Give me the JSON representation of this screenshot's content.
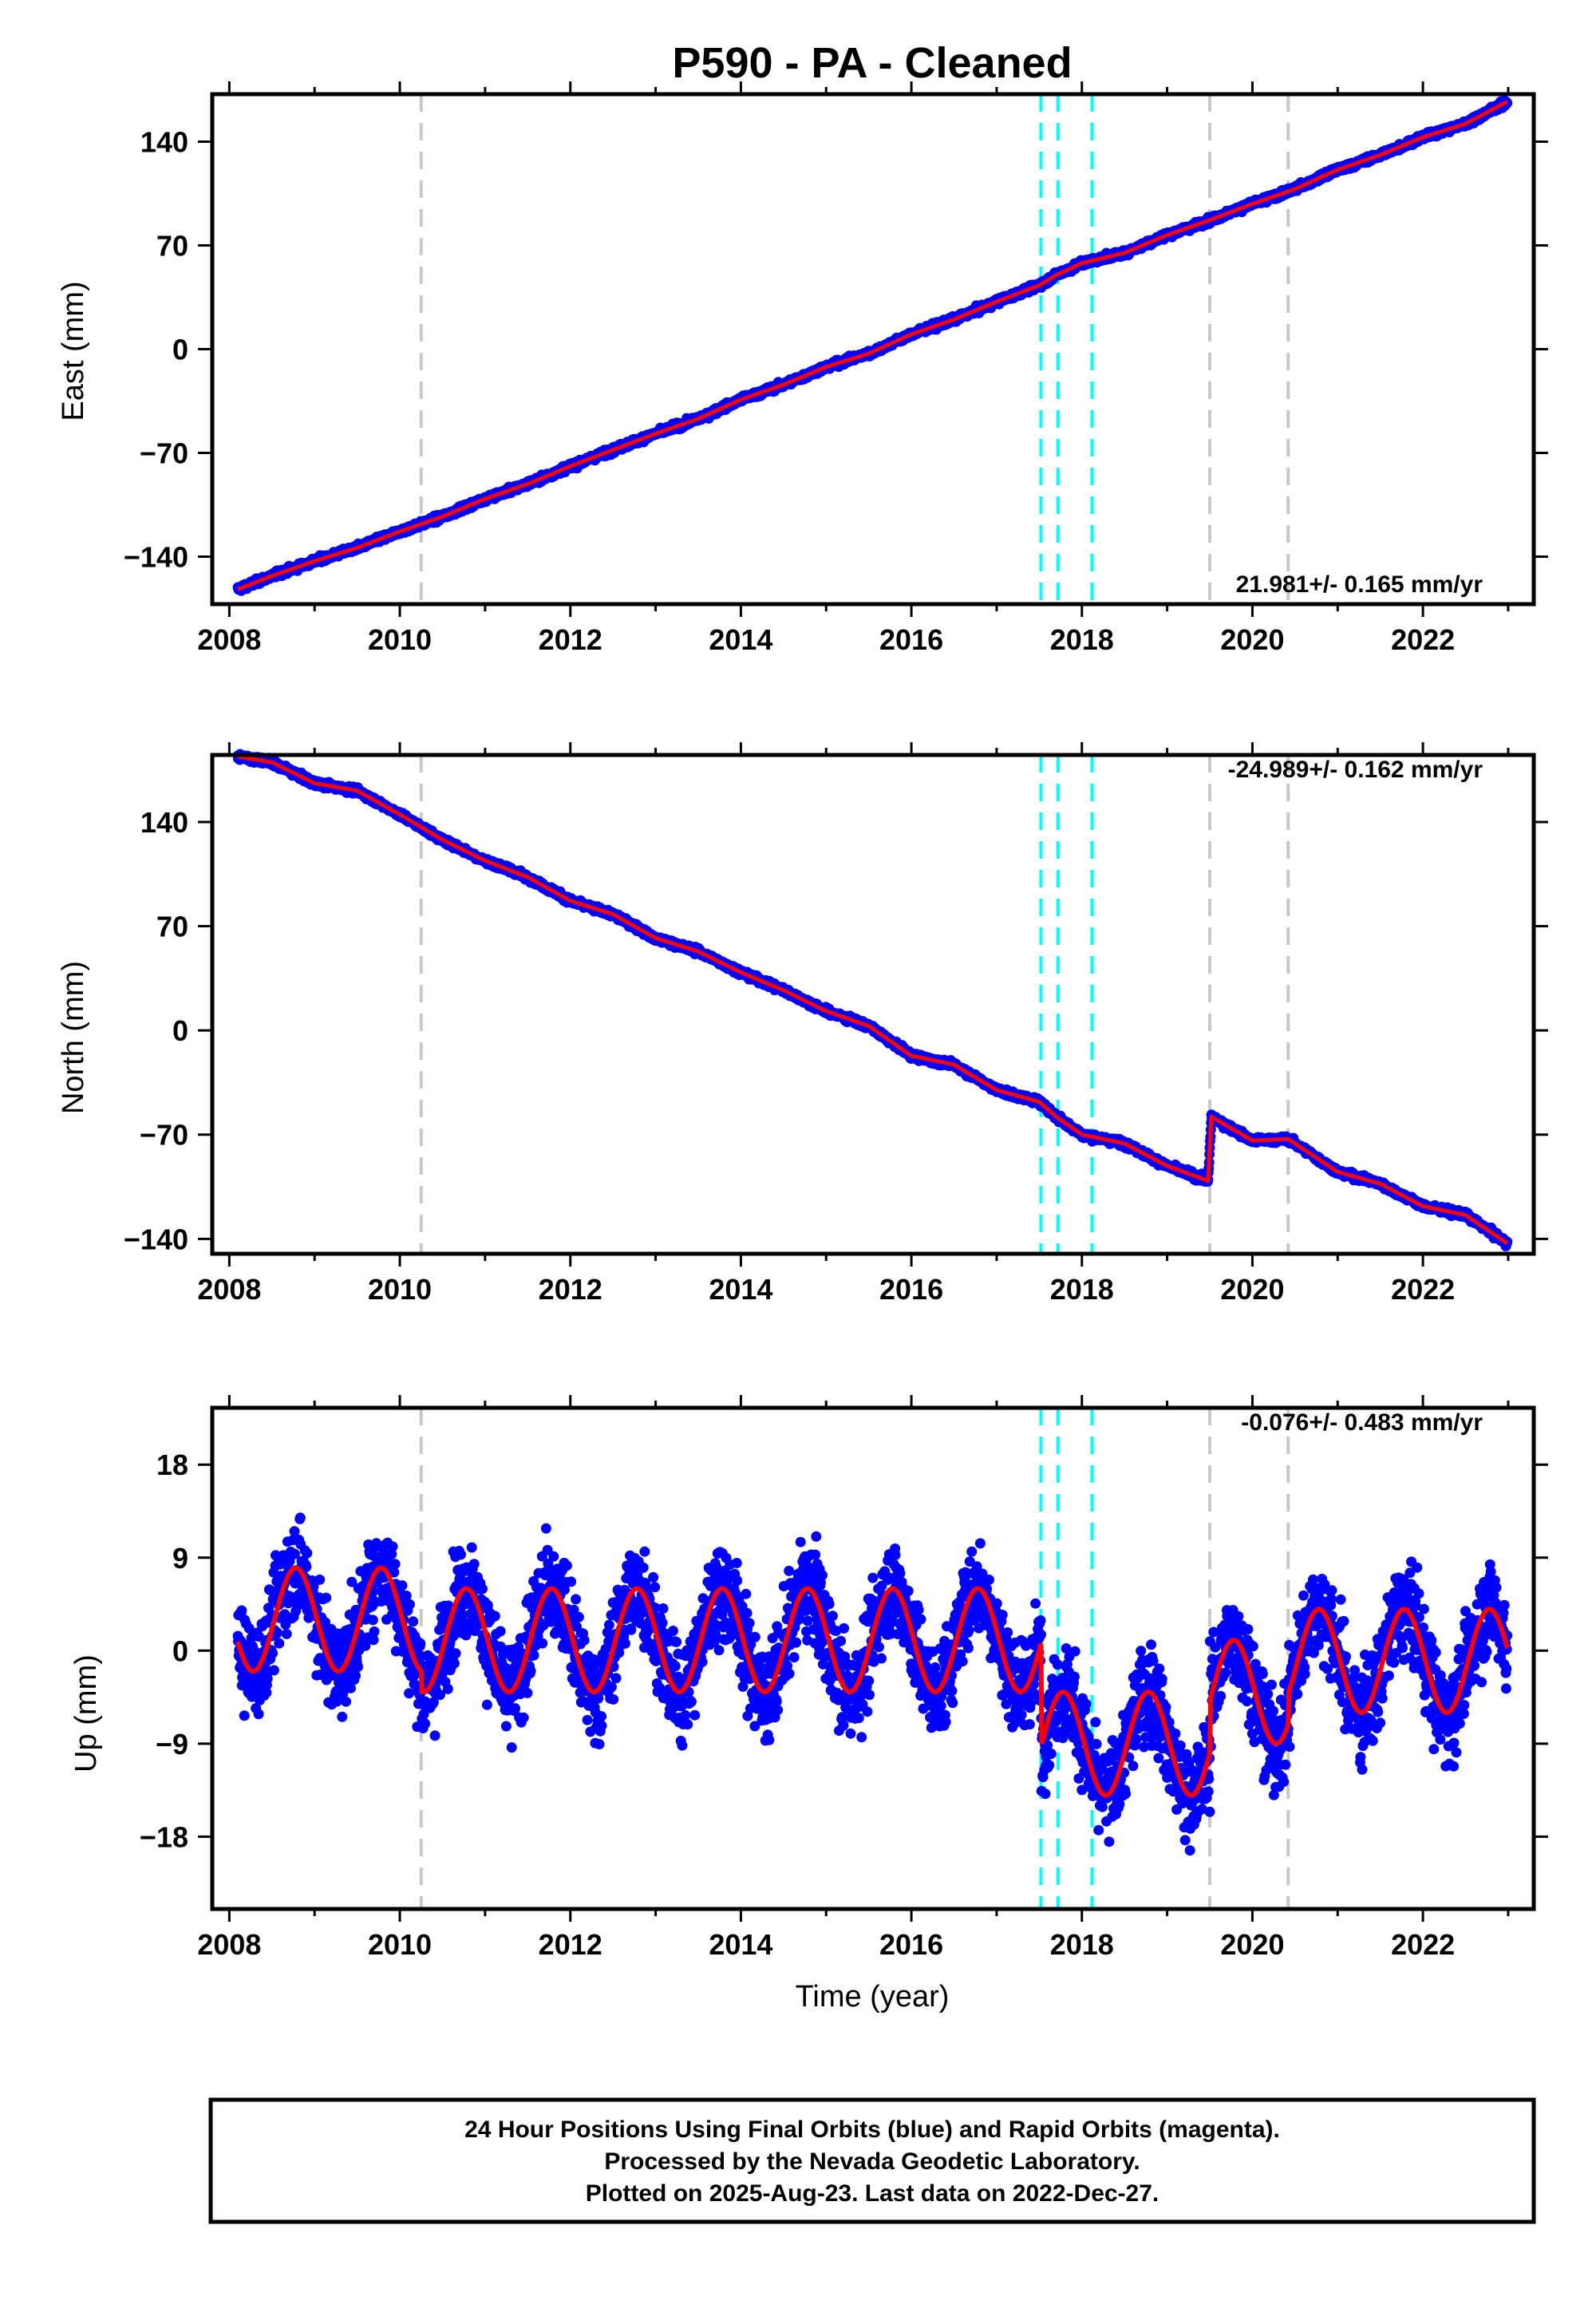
{
  "title": "P590  - PA - Cleaned",
  "colors": {
    "final_orbits": "#0000ff",
    "model": "#ff0000",
    "equipment_change": "#c8c8c8",
    "earthquake": "#00ffff"
  },
  "chart_data": [
    {
      "type": "scatter",
      "component": "East",
      "ylabel": "East (mm)",
      "xlabel": "",
      "xlim": [
        2007.8,
        2023.3
      ],
      "ylim": [
        -172,
        172
      ],
      "xticks": [
        "2008",
        "2010",
        "2012",
        "2014",
        "2016",
        "2018",
        "2020",
        "2022"
      ],
      "yticks": [
        "−140",
        "−70",
        "0",
        "70",
        "140"
      ],
      "ytick_values": [
        -140,
        -70,
        0,
        70,
        140
      ],
      "rate_label": "21.981+/- 0.165 mm/yr",
      "rate_position": "bottom-right",
      "trend": {
        "start": [
          2008.1,
          -162
        ],
        "end": [
          2022.99,
          167
        ],
        "rate_mm_per_yr": 21.981
      },
      "series": [
        {
          "x": [
            2008.1,
            2008.5,
            2009.0,
            2009.5,
            2010.0,
            2010.5,
            2011.0,
            2011.5,
            2012.0,
            2012.5,
            2013.0,
            2013.5,
            2014.0,
            2014.5,
            2015.0,
            2015.5,
            2016.0,
            2016.5,
            2017.0,
            2017.5,
            2017.7,
            2018.0,
            2018.5,
            2019.0,
            2019.5,
            2020.0,
            2020.5,
            2021.0,
            2021.5,
            2022.0,
            2022.5,
            2022.99
          ],
          "y": [
            -162,
            -153,
            -143,
            -134,
            -123,
            -113,
            -101,
            -91,
            -79,
            -68,
            -57,
            -47,
            -34,
            -24,
            -12,
            -3,
            10,
            20,
            32,
            43,
            50,
            58,
            65,
            77,
            87,
            98,
            108,
            121,
            131,
            143,
            152,
            167
          ]
        }
      ],
      "markers": {
        "equipment": [
          2010.25,
          2019.5,
          2020.42
        ],
        "earthquake": [
          2017.52,
          2017.72,
          2018.12
        ]
      }
    },
    {
      "type": "scatter",
      "component": "North",
      "ylabel": "North (mm)",
      "xlabel": "",
      "xlim": [
        2007.8,
        2023.3
      ],
      "ylim": [
        -150,
        185
      ],
      "xticks": [
        "2008",
        "2010",
        "2012",
        "2014",
        "2016",
        "2018",
        "2020",
        "2022"
      ],
      "yticks": [
        "−140",
        "−70",
        "0",
        "70",
        "140"
      ],
      "ytick_values": [
        -140,
        -70,
        0,
        70,
        140
      ],
      "rate_label": "-24.989+/- 0.162 mm/yr",
      "rate_position": "top-right",
      "series": [
        {
          "x": [
            2008.1,
            2008.5,
            2009.0,
            2009.5,
            2010.0,
            2010.5,
            2011.0,
            2011.5,
            2012.0,
            2012.5,
            2013.0,
            2013.5,
            2014.0,
            2014.5,
            2015.0,
            2015.5,
            2016.0,
            2016.5,
            2017.0,
            2017.5,
            2017.7,
            2018.0,
            2018.5,
            2019.0,
            2019.48,
            2019.52,
            2020.0,
            2020.42,
            2021.0,
            2021.5,
            2022.0,
            2022.5,
            2022.99
          ],
          "y": [
            184,
            180,
            166,
            161,
            145,
            128,
            114,
            103,
            87,
            78,
            62,
            53,
            39,
            27,
            13,
            3,
            -17,
            -23,
            -40,
            -48,
            -58,
            -70,
            -76,
            -91,
            -101,
            -58,
            -74,
            -73,
            -95,
            -103,
            -118,
            -124,
            -143
          ]
        }
      ],
      "markers": {
        "equipment": [
          2010.25,
          2019.5,
          2020.42
        ],
        "earthquake": [
          2017.52,
          2017.72,
          2018.12
        ]
      }
    },
    {
      "type": "scatter",
      "component": "Up",
      "ylabel": "Up (mm)",
      "xlabel": "Time (year)",
      "xlim": [
        2007.8,
        2023.3
      ],
      "ylim": [
        -25,
        23.5
      ],
      "xticks": [
        "2008",
        "2010",
        "2012",
        "2014",
        "2016",
        "2018",
        "2020",
        "2022"
      ],
      "yticks": [
        "−18",
        "−9",
        "0",
        "9",
        "18"
      ],
      "ytick_values": [
        -18,
        -9,
        0,
        9,
        18
      ],
      "rate_label": "-0.076+/- 0.483 mm/yr",
      "rate_position": "top-right",
      "model": {
        "seasonal_amplitude_mm": 5,
        "peak_phase_year": 0.78,
        "segments": [
          {
            "from": 2008.1,
            "to": 2010.25,
            "offset": 3
          },
          {
            "from": 2010.25,
            "to": 2017.52,
            "offset": 1
          },
          {
            "from": 2017.52,
            "to": 2019.5,
            "offset": -9
          },
          {
            "from": 2019.5,
            "to": 2020.42,
            "offset": -4
          },
          {
            "from": 2020.42,
            "to": 2022.99,
            "offset": -1
          }
        ]
      },
      "noise_sd_mm": 3.2,
      "markers": {
        "equipment": [
          2010.25,
          2019.5,
          2020.42
        ],
        "earthquake": [
          2017.52,
          2017.72,
          2018.12
        ]
      }
    }
  ],
  "footer": {
    "line1": "24 Hour Positions Using Final Orbits (blue) and Rapid Orbits (magenta).",
    "line2": "Processed by the Nevada Geodetic Laboratory.",
    "line3": "Plotted on 2025-Aug-23. Last data on 2022-Dec-27."
  }
}
